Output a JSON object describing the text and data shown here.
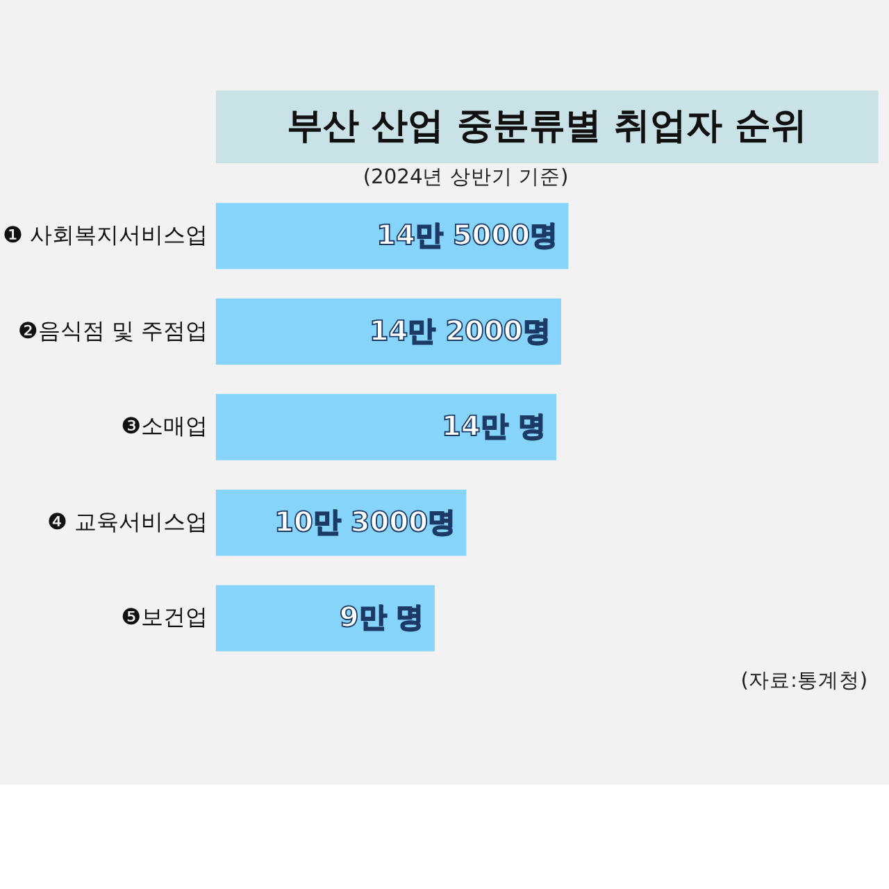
{
  "chart_data": {
    "type": "bar",
    "orientation": "horizontal",
    "title": "부산 산업 중분류별 취업자 순위",
    "subtitle": "(2024년 상반기 기준)",
    "categories": [
      "❶ 사회복지서비스업",
      "❷음식점 및 주점업",
      "❸소매업",
      "❹ 교육서비스업",
      "❺보건업"
    ],
    "values": [
      14.5,
      14.2,
      14,
      10.3,
      9
    ],
    "value_labels": [
      "14만 5000명",
      "14만 2000명",
      "14만 명",
      "10만 3000명",
      "9만 명"
    ],
    "color": "#87d4fb",
    "annotations": [
      "(자료:통계청)"
    ]
  }
}
